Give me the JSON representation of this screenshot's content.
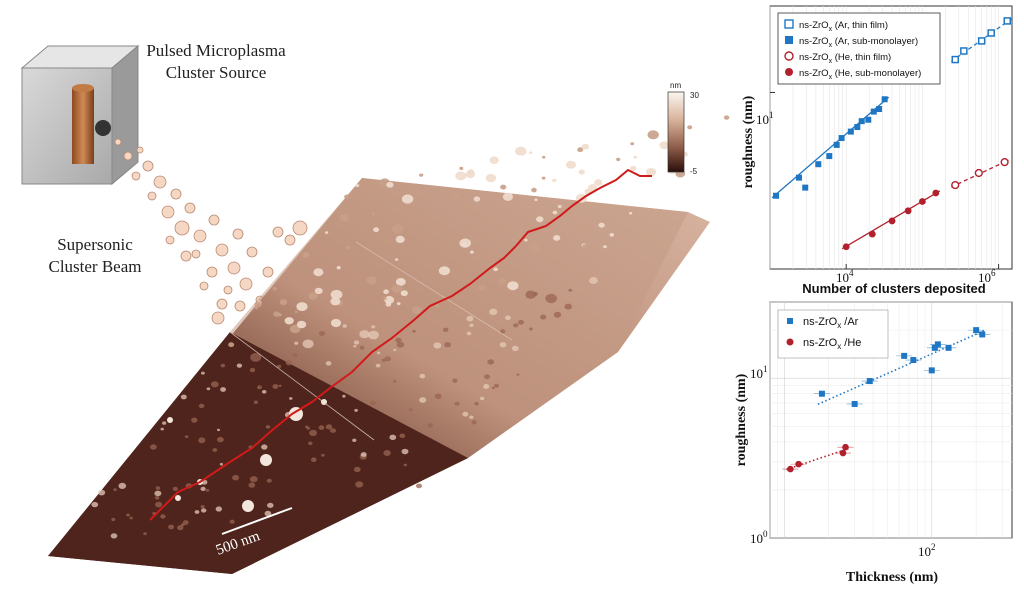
{
  "illustration": {
    "source_label_line1": "Pulsed Microplasma",
    "source_label_line2": "Cluster Source",
    "beam_label_line1": "Supersonic",
    "beam_label_line2": "Cluster Beam",
    "scale_bar_label": "500 nm",
    "colorbar_unit": "nm",
    "colorbar_max": "30",
    "colorbar_min": "-5"
  },
  "chart_data": [
    {
      "type": "scatter",
      "xlabel": "Number of clusters deposited",
      "ylabel": "roughness (nm)",
      "x_scale": "log",
      "y_scale": "log",
      "x_ticks": [
        "10^4",
        "10^6"
      ],
      "y_ticks": [
        "10^1"
      ],
      "xlim": [
        1000,
        1500000
      ],
      "ylim": [
        2,
        22
      ],
      "legend_position": "top-right",
      "series": [
        {
          "name": "ns-ZrOx (Ar, thin film)",
          "color": "#1f77c4",
          "marker": "open-square",
          "x": [
            270000,
            350000,
            600000,
            800000,
            1300000
          ],
          "y": [
            13.5,
            14.6,
            16.0,
            17.2,
            19.2
          ]
        },
        {
          "name": "ns-ZrOx (Ar, sub-monolayer)",
          "color": "#1f77c4",
          "marker": "filled-square",
          "x": [
            1200,
            2400,
            2900,
            4300,
            6000,
            7500,
            8700,
            11500,
            14000,
            16000,
            19500,
            23000,
            27000,
            32000
          ],
          "y": [
            3.9,
            4.6,
            4.2,
            5.2,
            5.6,
            6.2,
            6.6,
            7.0,
            7.3,
            7.7,
            7.8,
            8.4,
            8.6,
            9.4
          ]
        },
        {
          "name": "ns-ZrOx (He, thin film)",
          "color": "#b1202c",
          "marker": "open-circle",
          "x": [
            270000,
            550000,
            1200000
          ],
          "y": [
            4.3,
            4.8,
            5.3
          ]
        },
        {
          "name": "ns-ZrOx (He, sub-monolayer)",
          "color": "#b1202c",
          "marker": "filled-circle",
          "x": [
            10000,
            22000,
            40000,
            65000,
            100000,
            150000
          ],
          "y": [
            2.45,
            2.75,
            3.1,
            3.4,
            3.7,
            4.0
          ]
        }
      ]
    },
    {
      "type": "scatter",
      "xlabel": "Thickness (nm)",
      "ylabel": "roughness (nm)",
      "x_scale": "log",
      "y_scale": "log",
      "x_ticks": [
        "10^2"
      ],
      "y_ticks": [
        "10^0",
        "10^1"
      ],
      "xlim": [
        8,
        350
      ],
      "ylim": [
        1,
        30
      ],
      "grid": true,
      "legend_position": "top-left",
      "series": [
        {
          "name": "ns-ZrOx /Ar",
          "color": "#1f77c4",
          "marker": "filled-square",
          "x": [
            18,
            30,
            38,
            65,
            75,
            100,
            105,
            110,
            130,
            200,
            220
          ],
          "y": [
            8.0,
            6.9,
            9.6,
            13.8,
            13.0,
            11.2,
            15.5,
            16.3,
            15.5,
            20.0,
            18.8
          ]
        },
        {
          "name": "ns-ZrOx /He",
          "color": "#b1202c",
          "marker": "filled-circle",
          "x": [
            11,
            12.5,
            25,
            26
          ],
          "y": [
            2.7,
            2.9,
            3.4,
            3.7
          ]
        }
      ]
    }
  ]
}
